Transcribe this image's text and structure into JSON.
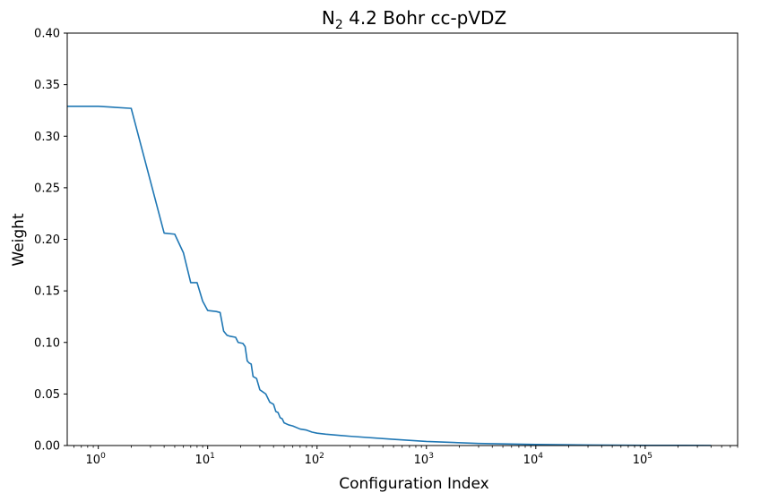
{
  "chart_data": {
    "type": "line",
    "title": {
      "main": "N",
      "sub": "2",
      "rest": " 4.2 Bohr cc-pVDZ"
    },
    "xlabel": "Configuration Index",
    "ylabel": "Weight",
    "xscale": "log",
    "xlim": [
      0.52,
      700000
    ],
    "ylim": [
      0,
      0.4
    ],
    "grid": false,
    "legend": "none",
    "yticks": [
      0.0,
      0.05,
      0.1,
      0.15,
      0.2,
      0.25,
      0.3,
      0.35,
      0.4
    ],
    "ytick_labels": [
      "0.00",
      "0.05",
      "0.10",
      "0.15",
      "0.20",
      "0.25",
      "0.30",
      "0.35",
      "0.40"
    ],
    "xticks": [
      {
        "base": "10",
        "exp": "0",
        "value": 1
      },
      {
        "base": "10",
        "exp": "1",
        "value": 10
      },
      {
        "base": "10",
        "exp": "2",
        "value": 100
      },
      {
        "base": "10",
        "exp": "3",
        "value": 1000
      },
      {
        "base": "10",
        "exp": "4",
        "value": 10000
      },
      {
        "base": "10",
        "exp": "5",
        "value": 100000
      }
    ],
    "series": [
      {
        "color": "#1f77b4",
        "x": [
          0.52,
          1,
          2,
          4,
          5,
          6,
          7,
          8,
          9,
          10,
          12,
          13,
          14,
          15,
          16,
          18,
          19,
          21,
          22,
          23,
          24,
          25,
          26,
          27,
          28,
          30,
          31,
          34,
          37,
          40,
          42,
          44,
          46,
          48,
          50,
          55,
          60,
          70,
          80,
          90,
          100,
          120,
          200,
          500,
          1000,
          3000,
          10000,
          30000,
          100000,
          400000
        ],
        "y": [
          0.329,
          0.329,
          0.327,
          0.206,
          0.205,
          0.187,
          0.158,
          0.158,
          0.14,
          0.131,
          0.13,
          0.129,
          0.111,
          0.107,
          0.106,
          0.105,
          0.1,
          0.099,
          0.096,
          0.082,
          0.08,
          0.079,
          0.067,
          0.066,
          0.065,
          0.054,
          0.053,
          0.05,
          0.042,
          0.04,
          0.033,
          0.032,
          0.027,
          0.026,
          0.022,
          0.02,
          0.019,
          0.016,
          0.015,
          0.013,
          0.012,
          0.011,
          0.009,
          0.006,
          0.004,
          0.002,
          0.001,
          0.0005,
          0.0002,
          0.0001
        ]
      }
    ]
  }
}
